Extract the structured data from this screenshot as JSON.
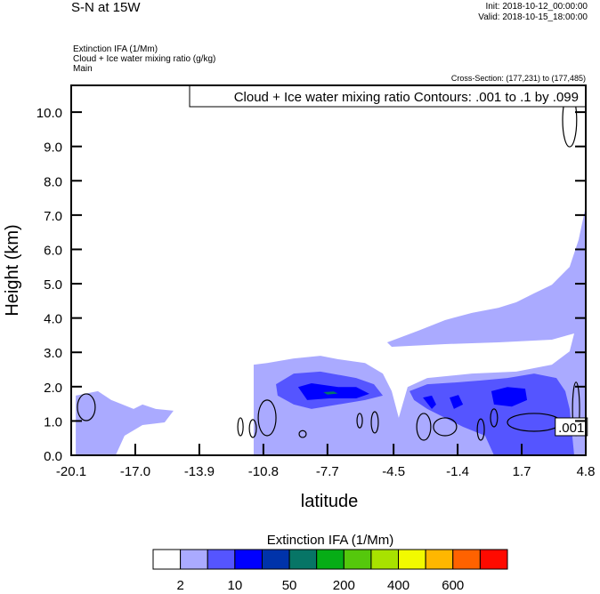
{
  "header": {
    "title": "S-N at 15W",
    "init": "Init: 2018-10-12_00:00:00",
    "valid": "Valid: 2018-10-15_18:00:00",
    "fields": [
      "Extinction IFA   (1/Mm)",
      "Cloud + Ice water mixing ratio    (g/kg)",
      "Main"
    ],
    "cross_section": "Cross-Section: (177,231) to (177,485)"
  },
  "chart_data": {
    "type": "contour",
    "contour_title": "Cloud + Ice water mixing ratio Contours: .001 to .1 by .099",
    "xlabel": "latitude",
    "ylabel": "Height (km)",
    "xlim": [
      -20.1,
      4.8
    ],
    "ylim": [
      0,
      10.78
    ],
    "xticks": [
      -20.1,
      -17.0,
      -13.9,
      -10.8,
      -7.7,
      -4.5,
      -1.4,
      1.7,
      4.8
    ],
    "xtick_labels": [
      "-20.1",
      "-17.0",
      "-13.9",
      "-10.8",
      "-7.7",
      "-4.5",
      "-1.4",
      "1.7",
      "4.8"
    ],
    "yticks": [
      0,
      1,
      2,
      3,
      4,
      5,
      6,
      7,
      8,
      9,
      10
    ],
    "ytick_labels": [
      "0.0",
      "1.0",
      "2.0",
      "3.0",
      "4.0",
      "5.0",
      "6.0",
      "7.0",
      "8.0",
      "9.0",
      "10.0"
    ],
    "fill_regions": [
      {
        "level": 1,
        "points": [
          [
            -11.27,
            0
          ],
          [
            -11.27,
            2.64
          ],
          [
            -10.62,
            2.69
          ],
          [
            -9.33,
            2.82
          ],
          [
            -8.04,
            2.9
          ],
          [
            -7.18,
            2.8
          ],
          [
            -5.88,
            2.69
          ],
          [
            -5.02,
            2.38
          ],
          [
            -4.59,
            1.87
          ],
          [
            -4.25,
            1.09
          ],
          [
            -3.82,
            1.99
          ],
          [
            -2.87,
            2.25
          ],
          [
            -0.71,
            2.38
          ],
          [
            1.44,
            2.44
          ],
          [
            3.16,
            2.64
          ],
          [
            4.02,
            3.03
          ],
          [
            4.24,
            3.55
          ],
          [
            3.16,
            3.37
          ],
          [
            0.58,
            3.29
          ],
          [
            -2.01,
            3.24
          ],
          [
            -4.59,
            3.16
          ],
          [
            -4.81,
            3.29
          ],
          [
            -3.3,
            3.63
          ],
          [
            -2.01,
            3.94
          ],
          [
            -0.71,
            4.15
          ],
          [
            0.58,
            4.3
          ],
          [
            1.44,
            4.46
          ],
          [
            2.3,
            4.72
          ],
          [
            3.16,
            4.97
          ],
          [
            4.02,
            5.49
          ],
          [
            4.45,
            6.27
          ],
          [
            4.8,
            7.25
          ],
          [
            4.8,
            0
          ]
        ]
      },
      {
        "level": 1,
        "points": [
          [
            -19.88,
            0
          ],
          [
            -19.88,
            1.74
          ],
          [
            -18.81,
            1.87
          ],
          [
            -18.16,
            1.61
          ],
          [
            -17.08,
            1.35
          ],
          [
            -16.65,
            1.48
          ],
          [
            -16.01,
            1.35
          ],
          [
            -15.15,
            1.3
          ],
          [
            -15.58,
            0.96
          ],
          [
            -16.65,
            0.88
          ],
          [
            -17.52,
            0.57
          ],
          [
            -17.95,
            0
          ]
        ]
      },
      {
        "level": 2,
        "points": [
          [
            -10.19,
            2.07
          ],
          [
            -9.33,
            2.38
          ],
          [
            -8.04,
            2.44
          ],
          [
            -6.31,
            2.25
          ],
          [
            -5.45,
            2.07
          ],
          [
            -5.02,
            1.74
          ],
          [
            -5.88,
            1.61
          ],
          [
            -7.18,
            1.48
          ],
          [
            -8.47,
            1.35
          ],
          [
            -9.33,
            1.48
          ],
          [
            -10.11,
            1.74
          ]
        ]
      },
      {
        "level": 2,
        "points": [
          [
            -3.73,
            1.87
          ],
          [
            -2.87,
            2.07
          ],
          [
            -1.58,
            2.12
          ],
          [
            -0.28,
            2.18
          ],
          [
            1.01,
            2.25
          ],
          [
            2.3,
            2.38
          ],
          [
            3.38,
            2.25
          ],
          [
            3.81,
            1.87
          ],
          [
            4.02,
            1.35
          ],
          [
            4.24,
            0
          ],
          [
            0.36,
            0
          ],
          [
            -0.07,
            0.57
          ],
          [
            -1.14,
            0.83
          ],
          [
            -2.01,
            1.09
          ],
          [
            -2.87,
            1.35
          ],
          [
            -3.51,
            1.61
          ]
        ]
      },
      {
        "level": 3,
        "points": [
          [
            -9.12,
            1.99
          ],
          [
            -8.47,
            2.1
          ],
          [
            -7.18,
            1.99
          ],
          [
            -6.31,
            1.99
          ],
          [
            -5.67,
            1.79
          ],
          [
            -6.31,
            1.66
          ],
          [
            -7.61,
            1.66
          ],
          [
            -8.68,
            1.61
          ]
        ]
      },
      {
        "level": 3,
        "points": [
          [
            -3.08,
            1.68
          ],
          [
            -2.65,
            1.74
          ],
          [
            -2.44,
            1.48
          ],
          [
            -2.65,
            1.35
          ]
        ]
      },
      {
        "level": 3,
        "points": [
          [
            -1.79,
            1.68
          ],
          [
            -1.36,
            1.76
          ],
          [
            -1.14,
            1.48
          ],
          [
            -1.58,
            1.35
          ]
        ]
      },
      {
        "level": 3,
        "points": [
          [
            0.23,
            1.87
          ],
          [
            1.01,
            1.99
          ],
          [
            1.87,
            1.94
          ],
          [
            1.96,
            1.61
          ],
          [
            1.22,
            1.42
          ],
          [
            0.36,
            1.48
          ]
        ]
      },
      {
        "level": 5,
        "points": [
          [
            -7.9,
            1.84
          ],
          [
            -7.4,
            1.86
          ],
          [
            -7.2,
            1.8
          ],
          [
            -7.7,
            1.77
          ]
        ]
      }
    ],
    "contours": [
      {
        "level": 0.001,
        "center": [
          -19.37,
          1.4
        ],
        "radii": [
          0.43,
          0.39
        ]
      },
      {
        "level": 0.001,
        "center": [
          -11.91,
          0.83
        ],
        "radii": [
          0.13,
          0.26
        ]
      },
      {
        "level": 0.001,
        "center": [
          -11.31,
          0.78
        ],
        "radii": [
          0.17,
          0.26
        ]
      },
      {
        "level": 0.001,
        "center": [
          -10.62,
          1.09
        ],
        "radii": [
          0.43,
          0.52
        ]
      },
      {
        "level": 0.001,
        "center": [
          -8.9,
          0.62
        ],
        "radii": [
          0.17,
          0.1
        ]
      },
      {
        "level": 0.001,
        "center": [
          -6.14,
          1.01
        ],
        "radii": [
          0.13,
          0.21
        ]
      },
      {
        "level": 0.001,
        "center": [
          -5.41,
          0.96
        ],
        "radii": [
          0.17,
          0.31
        ]
      },
      {
        "level": 0.001,
        "center": [
          -3.04,
          0.83
        ],
        "radii": [
          0.34,
          0.39
        ]
      },
      {
        "level": 0.001,
        "center": [
          -2.01,
          0.83
        ],
        "radii": [
          0.56,
          0.26
        ]
      },
      {
        "level": 0.001,
        "center": [
          -0.28,
          0.75
        ],
        "radii": [
          0.17,
          0.31
        ]
      },
      {
        "level": 0.001,
        "center": [
          0.36,
          1.09
        ],
        "radii": [
          0.17,
          0.26
        ]
      },
      {
        "level": 0.001,
        "center": [
          2.3,
          0.96
        ],
        "radii": [
          1.29,
          0.26
        ]
      },
      {
        "level": 0.001,
        "center": [
          4.33,
          1.35
        ],
        "radii": [
          0.17,
          0.78
        ]
      },
      {
        "level": 0.001,
        "center": [
          4.02,
          9.77
        ],
        "radii": [
          0.34,
          0.78
        ]
      }
    ],
    "contour_label": {
      "text": ".001",
      "at": [
        4.1,
        0.83
      ]
    },
    "colorbar": {
      "title": "Extinction IFA  (1/Mm)",
      "colors": [
        "#ffffff",
        "#aaaaff",
        "#5555ff",
        "#0000ff",
        "#0033aa",
        "#077566",
        "#06ad16",
        "#55c80c",
        "#a8e200",
        "#f2fa00",
        "#ffb700",
        "#ff6200",
        "#ff0a00"
      ],
      "labels": [
        "2",
        "10",
        "50",
        "200",
        "400",
        "600"
      ],
      "label_boundaries": [
        1,
        3,
        5,
        7,
        9,
        11
      ]
    }
  }
}
